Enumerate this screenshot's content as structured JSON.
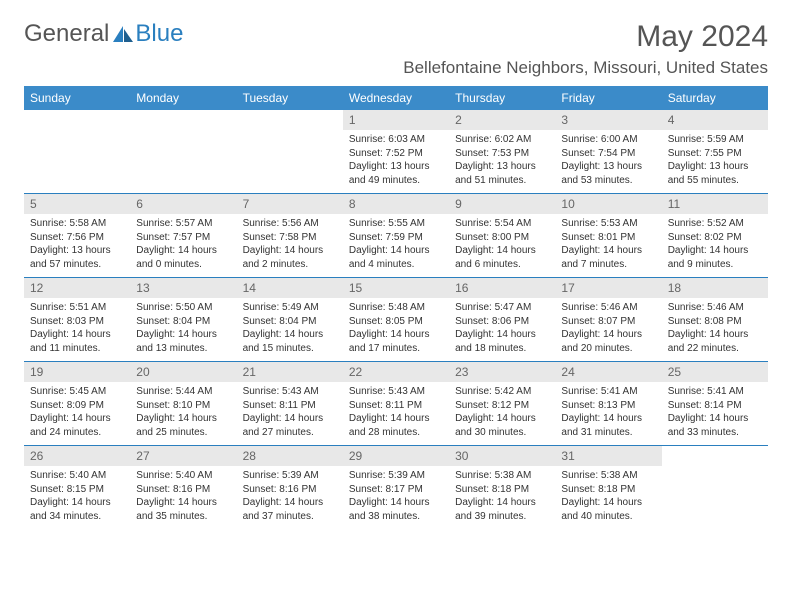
{
  "logo": {
    "text1": "General",
    "text2": "Blue"
  },
  "title": "May 2024",
  "location": "Bellefontaine Neighbors, Missouri, United States",
  "colors": {
    "headerBg": "#3b8bc9",
    "headerText": "#ffffff",
    "daynumBg": "#e8e8e8",
    "daynumText": "#666666",
    "rowBorder": "#2a7fbf",
    "bodyText": "#333333",
    "titleText": "#555555",
    "logoBlue": "#2a7fbf"
  },
  "typography": {
    "title_fontsize": 30,
    "location_fontsize": 17,
    "dayheader_fontsize": 12,
    "daynum_fontsize": 12,
    "content_fontsize": 10
  },
  "dayHeaders": [
    "Sunday",
    "Monday",
    "Tuesday",
    "Wednesday",
    "Thursday",
    "Friday",
    "Saturday"
  ],
  "weeks": [
    [
      null,
      null,
      null,
      {
        "n": "1",
        "sr": "Sunrise: 6:03 AM",
        "ss": "Sunset: 7:52 PM",
        "dl": "Daylight: 13 hours and 49 minutes."
      },
      {
        "n": "2",
        "sr": "Sunrise: 6:02 AM",
        "ss": "Sunset: 7:53 PM",
        "dl": "Daylight: 13 hours and 51 minutes."
      },
      {
        "n": "3",
        "sr": "Sunrise: 6:00 AM",
        "ss": "Sunset: 7:54 PM",
        "dl": "Daylight: 13 hours and 53 minutes."
      },
      {
        "n": "4",
        "sr": "Sunrise: 5:59 AM",
        "ss": "Sunset: 7:55 PM",
        "dl": "Daylight: 13 hours and 55 minutes."
      }
    ],
    [
      {
        "n": "5",
        "sr": "Sunrise: 5:58 AM",
        "ss": "Sunset: 7:56 PM",
        "dl": "Daylight: 13 hours and 57 minutes."
      },
      {
        "n": "6",
        "sr": "Sunrise: 5:57 AM",
        "ss": "Sunset: 7:57 PM",
        "dl": "Daylight: 14 hours and 0 minutes."
      },
      {
        "n": "7",
        "sr": "Sunrise: 5:56 AM",
        "ss": "Sunset: 7:58 PM",
        "dl": "Daylight: 14 hours and 2 minutes."
      },
      {
        "n": "8",
        "sr": "Sunrise: 5:55 AM",
        "ss": "Sunset: 7:59 PM",
        "dl": "Daylight: 14 hours and 4 minutes."
      },
      {
        "n": "9",
        "sr": "Sunrise: 5:54 AM",
        "ss": "Sunset: 8:00 PM",
        "dl": "Daylight: 14 hours and 6 minutes."
      },
      {
        "n": "10",
        "sr": "Sunrise: 5:53 AM",
        "ss": "Sunset: 8:01 PM",
        "dl": "Daylight: 14 hours and 7 minutes."
      },
      {
        "n": "11",
        "sr": "Sunrise: 5:52 AM",
        "ss": "Sunset: 8:02 PM",
        "dl": "Daylight: 14 hours and 9 minutes."
      }
    ],
    [
      {
        "n": "12",
        "sr": "Sunrise: 5:51 AM",
        "ss": "Sunset: 8:03 PM",
        "dl": "Daylight: 14 hours and 11 minutes."
      },
      {
        "n": "13",
        "sr": "Sunrise: 5:50 AM",
        "ss": "Sunset: 8:04 PM",
        "dl": "Daylight: 14 hours and 13 minutes."
      },
      {
        "n": "14",
        "sr": "Sunrise: 5:49 AM",
        "ss": "Sunset: 8:04 PM",
        "dl": "Daylight: 14 hours and 15 minutes."
      },
      {
        "n": "15",
        "sr": "Sunrise: 5:48 AM",
        "ss": "Sunset: 8:05 PM",
        "dl": "Daylight: 14 hours and 17 minutes."
      },
      {
        "n": "16",
        "sr": "Sunrise: 5:47 AM",
        "ss": "Sunset: 8:06 PM",
        "dl": "Daylight: 14 hours and 18 minutes."
      },
      {
        "n": "17",
        "sr": "Sunrise: 5:46 AM",
        "ss": "Sunset: 8:07 PM",
        "dl": "Daylight: 14 hours and 20 minutes."
      },
      {
        "n": "18",
        "sr": "Sunrise: 5:46 AM",
        "ss": "Sunset: 8:08 PM",
        "dl": "Daylight: 14 hours and 22 minutes."
      }
    ],
    [
      {
        "n": "19",
        "sr": "Sunrise: 5:45 AM",
        "ss": "Sunset: 8:09 PM",
        "dl": "Daylight: 14 hours and 24 minutes."
      },
      {
        "n": "20",
        "sr": "Sunrise: 5:44 AM",
        "ss": "Sunset: 8:10 PM",
        "dl": "Daylight: 14 hours and 25 minutes."
      },
      {
        "n": "21",
        "sr": "Sunrise: 5:43 AM",
        "ss": "Sunset: 8:11 PM",
        "dl": "Daylight: 14 hours and 27 minutes."
      },
      {
        "n": "22",
        "sr": "Sunrise: 5:43 AM",
        "ss": "Sunset: 8:11 PM",
        "dl": "Daylight: 14 hours and 28 minutes."
      },
      {
        "n": "23",
        "sr": "Sunrise: 5:42 AM",
        "ss": "Sunset: 8:12 PM",
        "dl": "Daylight: 14 hours and 30 minutes."
      },
      {
        "n": "24",
        "sr": "Sunrise: 5:41 AM",
        "ss": "Sunset: 8:13 PM",
        "dl": "Daylight: 14 hours and 31 minutes."
      },
      {
        "n": "25",
        "sr": "Sunrise: 5:41 AM",
        "ss": "Sunset: 8:14 PM",
        "dl": "Daylight: 14 hours and 33 minutes."
      }
    ],
    [
      {
        "n": "26",
        "sr": "Sunrise: 5:40 AM",
        "ss": "Sunset: 8:15 PM",
        "dl": "Daylight: 14 hours and 34 minutes."
      },
      {
        "n": "27",
        "sr": "Sunrise: 5:40 AM",
        "ss": "Sunset: 8:16 PM",
        "dl": "Daylight: 14 hours and 35 minutes."
      },
      {
        "n": "28",
        "sr": "Sunrise: 5:39 AM",
        "ss": "Sunset: 8:16 PM",
        "dl": "Daylight: 14 hours and 37 minutes."
      },
      {
        "n": "29",
        "sr": "Sunrise: 5:39 AM",
        "ss": "Sunset: 8:17 PM",
        "dl": "Daylight: 14 hours and 38 minutes."
      },
      {
        "n": "30",
        "sr": "Sunrise: 5:38 AM",
        "ss": "Sunset: 8:18 PM",
        "dl": "Daylight: 14 hours and 39 minutes."
      },
      {
        "n": "31",
        "sr": "Sunrise: 5:38 AM",
        "ss": "Sunset: 8:18 PM",
        "dl": "Daylight: 14 hours and 40 minutes."
      },
      null
    ]
  ]
}
